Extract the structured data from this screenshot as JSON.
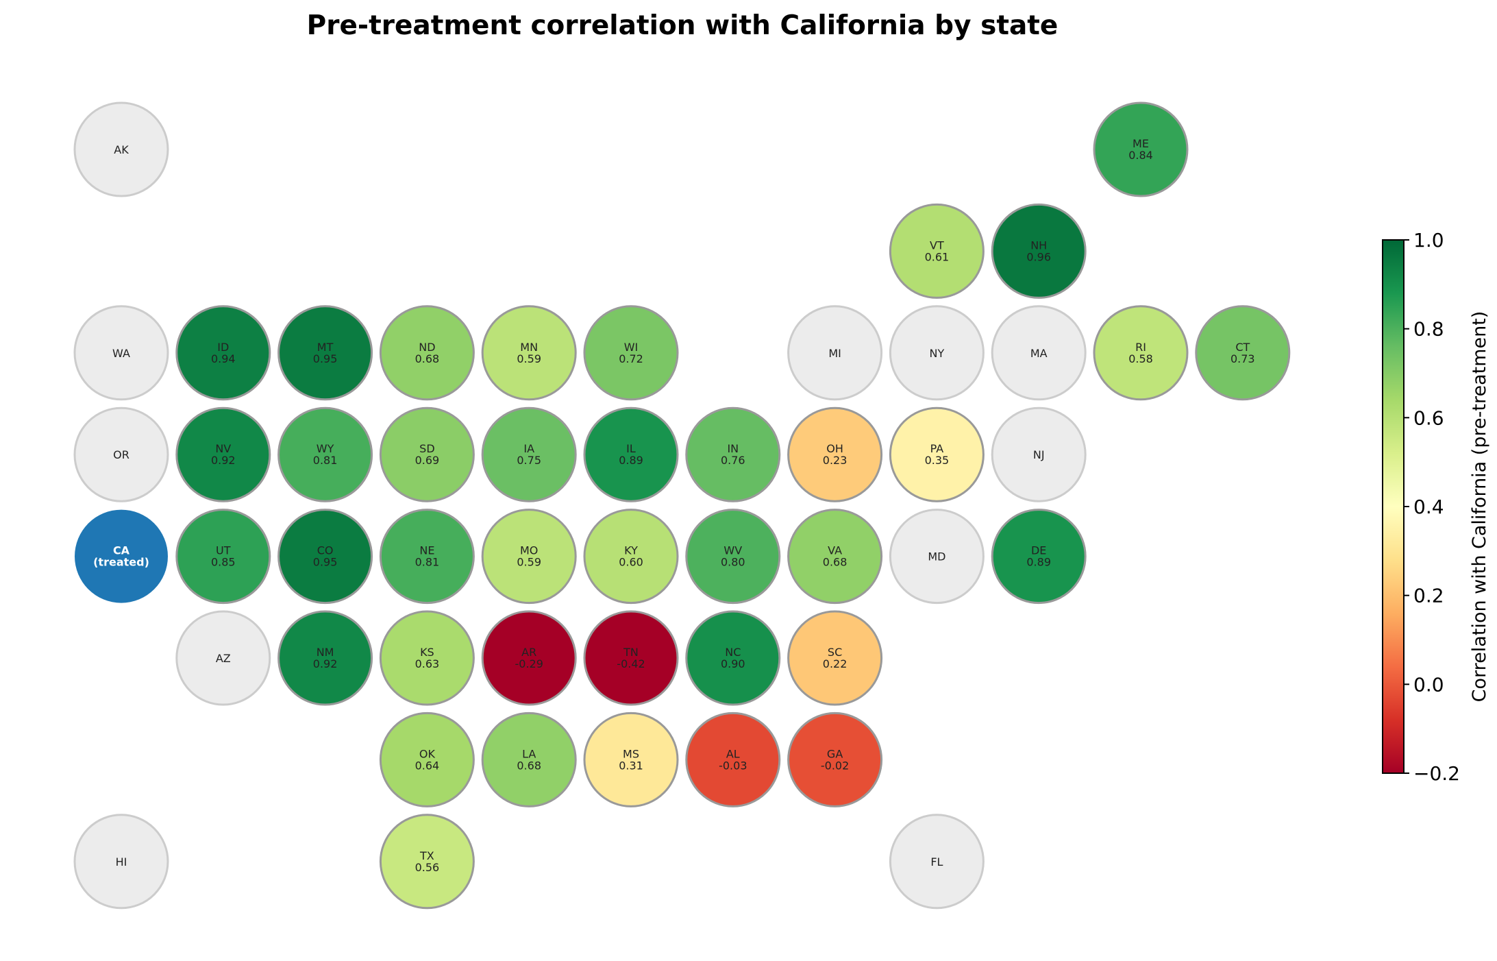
{
  "chart_data": {
    "type": "heatmap",
    "title": "Pre-treatment correlation with California by state",
    "colorbar": {
      "label": "Correlation with California (pre-treatment)",
      "range": [
        -0.2,
        1.0
      ],
      "ticks": [
        "1.0",
        "0.8",
        "0.6",
        "0.4",
        "0.2",
        "0.0",
        "−0.2"
      ],
      "tick_values": [
        1.0,
        0.8,
        0.6,
        0.4,
        0.2,
        0.0,
        -0.2
      ],
      "colormap": "RdYlGn"
    },
    "colors": {
      "treated": "#1f77b4",
      "no_data": "#ececec"
    },
    "treated_label": "(treated)",
    "states": [
      {
        "abbr": "AK",
        "row": 0,
        "col": 0,
        "value": null
      },
      {
        "abbr": "ME",
        "row": 0,
        "col": 10,
        "value": 0.84,
        "label": "0.84"
      },
      {
        "abbr": "VT",
        "row": 1,
        "col": 8,
        "value": 0.61,
        "label": "0.61"
      },
      {
        "abbr": "NH",
        "row": 1,
        "col": 9,
        "value": 0.96,
        "label": "0.96"
      },
      {
        "abbr": "WA",
        "row": 2,
        "col": 0,
        "value": null
      },
      {
        "abbr": "ID",
        "row": 2,
        "col": 1,
        "value": 0.94,
        "label": "0.94"
      },
      {
        "abbr": "MT",
        "row": 2,
        "col": 2,
        "value": 0.95,
        "label": "0.95"
      },
      {
        "abbr": "ND",
        "row": 2,
        "col": 3,
        "value": 0.68,
        "label": "0.68"
      },
      {
        "abbr": "MN",
        "row": 2,
        "col": 4,
        "value": 0.59,
        "label": "0.59"
      },
      {
        "abbr": "WI",
        "row": 2,
        "col": 5,
        "value": 0.72,
        "label": "0.72"
      },
      {
        "abbr": "MI",
        "row": 2,
        "col": 7,
        "value": null
      },
      {
        "abbr": "NY",
        "row": 2,
        "col": 8,
        "value": null
      },
      {
        "abbr": "MA",
        "row": 2,
        "col": 9,
        "value": null
      },
      {
        "abbr": "RI",
        "row": 2,
        "col": 10,
        "value": 0.58,
        "label": "0.58"
      },
      {
        "abbr": "CT",
        "row": 2,
        "col": 11,
        "value": 0.73,
        "label": "0.73"
      },
      {
        "abbr": "OR",
        "row": 3,
        "col": 0,
        "value": null
      },
      {
        "abbr": "NV",
        "row": 3,
        "col": 1,
        "value": 0.92,
        "label": "0.92"
      },
      {
        "abbr": "WY",
        "row": 3,
        "col": 2,
        "value": 0.81,
        "label": "0.81"
      },
      {
        "abbr": "SD",
        "row": 3,
        "col": 3,
        "value": 0.69,
        "label": "0.69"
      },
      {
        "abbr": "IA",
        "row": 3,
        "col": 4,
        "value": 0.75,
        "label": "0.75"
      },
      {
        "abbr": "IL",
        "row": 3,
        "col": 5,
        "value": 0.89,
        "label": "0.89"
      },
      {
        "abbr": "IN",
        "row": 3,
        "col": 6,
        "value": 0.76,
        "label": "0.76"
      },
      {
        "abbr": "OH",
        "row": 3,
        "col": 7,
        "value": 0.23,
        "label": "0.23"
      },
      {
        "abbr": "PA",
        "row": 3,
        "col": 8,
        "value": 0.35,
        "label": "0.35"
      },
      {
        "abbr": "NJ",
        "row": 3,
        "col": 9,
        "value": null
      },
      {
        "abbr": "CA",
        "row": 4,
        "col": 0,
        "value": null,
        "treated": true
      },
      {
        "abbr": "UT",
        "row": 4,
        "col": 1,
        "value": 0.85,
        "label": "0.85"
      },
      {
        "abbr": "CO",
        "row": 4,
        "col": 2,
        "value": 0.95,
        "label": "0.95"
      },
      {
        "abbr": "NE",
        "row": 4,
        "col": 3,
        "value": 0.81,
        "label": "0.81"
      },
      {
        "abbr": "MO",
        "row": 4,
        "col": 4,
        "value": 0.59,
        "label": "0.59"
      },
      {
        "abbr": "KY",
        "row": 4,
        "col": 5,
        "value": 0.6,
        "label": "0.60"
      },
      {
        "abbr": "WV",
        "row": 4,
        "col": 6,
        "value": 0.8,
        "label": "0.80"
      },
      {
        "abbr": "VA",
        "row": 4,
        "col": 7,
        "value": 0.68,
        "label": "0.68"
      },
      {
        "abbr": "MD",
        "row": 4,
        "col": 8,
        "value": null
      },
      {
        "abbr": "DE",
        "row": 4,
        "col": 9,
        "value": 0.89,
        "label": "0.89"
      },
      {
        "abbr": "AZ",
        "row": 5,
        "col": 1,
        "value": null
      },
      {
        "abbr": "NM",
        "row": 5,
        "col": 2,
        "value": 0.92,
        "label": "0.92"
      },
      {
        "abbr": "KS",
        "row": 5,
        "col": 3,
        "value": 0.63,
        "label": "0.63"
      },
      {
        "abbr": "AR",
        "row": 5,
        "col": 4,
        "value": -0.29,
        "label": "-0.29"
      },
      {
        "abbr": "TN",
        "row": 5,
        "col": 5,
        "value": -0.42,
        "label": "-0.42"
      },
      {
        "abbr": "NC",
        "row": 5,
        "col": 6,
        "value": 0.9,
        "label": "0.90"
      },
      {
        "abbr": "SC",
        "row": 5,
        "col": 7,
        "value": 0.22,
        "label": "0.22"
      },
      {
        "abbr": "OK",
        "row": 6,
        "col": 3,
        "value": 0.64,
        "label": "0.64"
      },
      {
        "abbr": "LA",
        "row": 6,
        "col": 4,
        "value": 0.68,
        "label": "0.68"
      },
      {
        "abbr": "MS",
        "row": 6,
        "col": 5,
        "value": 0.31,
        "label": "0.31"
      },
      {
        "abbr": "AL",
        "row": 6,
        "col": 6,
        "value": -0.03,
        "label": "-0.03"
      },
      {
        "abbr": "GA",
        "row": 6,
        "col": 7,
        "value": -0.02,
        "label": "-0.02"
      },
      {
        "abbr": "HI",
        "row": 7,
        "col": 0,
        "value": null
      },
      {
        "abbr": "TX",
        "row": 7,
        "col": 3,
        "value": 0.56,
        "label": "0.56"
      },
      {
        "abbr": "FL",
        "row": 7,
        "col": 8,
        "value": null
      }
    ]
  }
}
